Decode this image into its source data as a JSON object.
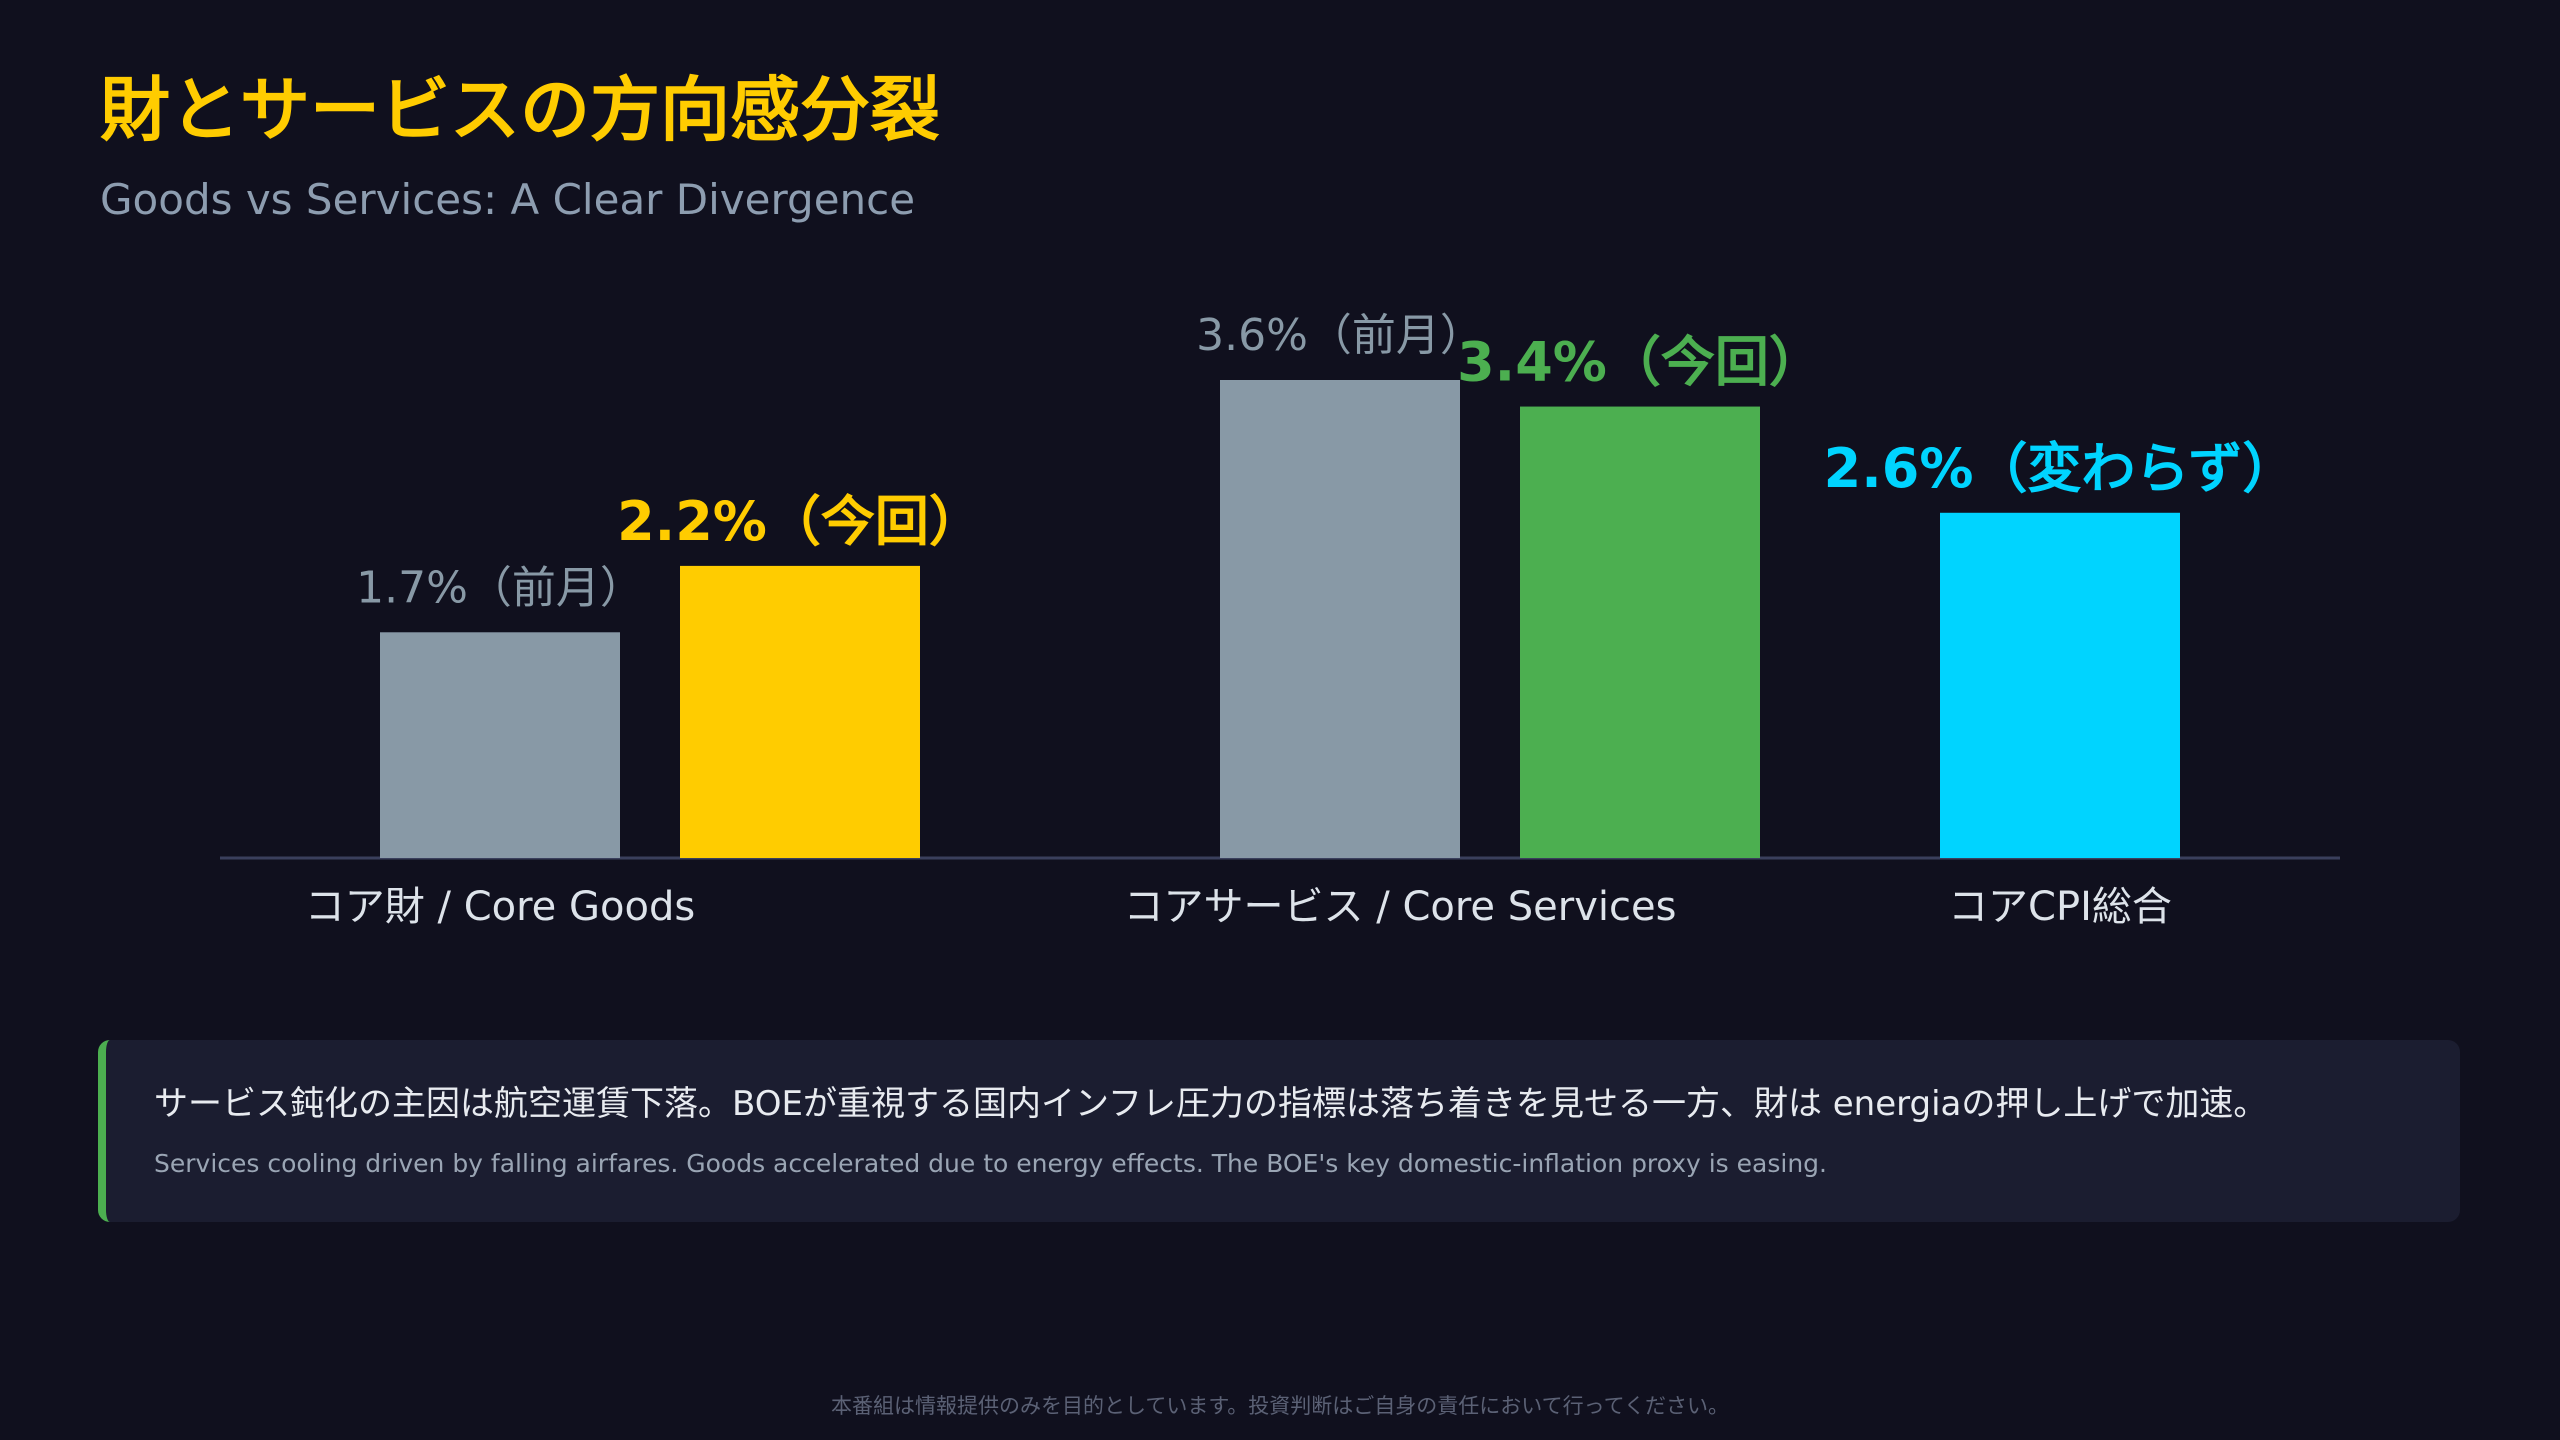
{
  "header": {
    "title": "財とサービスの方向感分裂",
    "subtitle": "Goods vs Services: A Clear Divergence"
  },
  "chart_data": {
    "type": "bar",
    "categories": [
      "コア財 / Core Goods",
      "コアサービス / Core Services",
      "コアCPI総合"
    ],
    "bars": [
      {
        "category": "コア財 / Core Goods",
        "value": 1.7,
        "label": "1.7%（前月）",
        "kind": "previous",
        "color": "#8899a6"
      },
      {
        "category": "コア財 / Core Goods",
        "value": 2.2,
        "label": "2.2%（今回）",
        "kind": "current",
        "color": "#ffcc00"
      },
      {
        "category": "コアサービス / Core Services",
        "value": 3.6,
        "label": "3.6%（前月）",
        "kind": "previous",
        "color": "#8899a6"
      },
      {
        "category": "コアサービス / Core Services",
        "value": 3.4,
        "label": "3.4%（今回）",
        "kind": "current",
        "color": "#4caf50"
      },
      {
        "category": "コアCPI総合",
        "value": 2.6,
        "label": "2.6%（変わらず）",
        "kind": "unchanged",
        "color": "#00d4ff"
      }
    ],
    "ylim": [
      0,
      3.6
    ],
    "grid": false,
    "legend": "none"
  },
  "note": {
    "main": "サービス鈍化の主因は航空運賃下落。BOEが重視する国内インフレ圧力の指標は落ち着きを見せる一方、財は energiaの押し上げで加速。",
    "sub": "Services cooling driven by falling airfares. Goods accelerated due to energy effects. The BOE's key domestic-inflation proxy is easing."
  },
  "footer": {
    "disclaimer": "本番組は情報提供のみを目的としています。投資判断はご自身の責任において行ってください。"
  },
  "colors": {
    "background": "#10101e",
    "title": "#ffcc00",
    "subtitle": "#8d9db0",
    "previous_bar": "#8899a6",
    "goods_current": "#ffcc00",
    "services_current": "#4caf50",
    "total": "#00d4ff",
    "axis": "#3a3f5c",
    "category_label": "#dde3ea",
    "note_bg": "#1b1d30",
    "note_accent": "#4caf50",
    "note_main_text": "#e8ebf0",
    "note_sub_text": "#9aa5b4",
    "footer_text": "#5b6175"
  }
}
